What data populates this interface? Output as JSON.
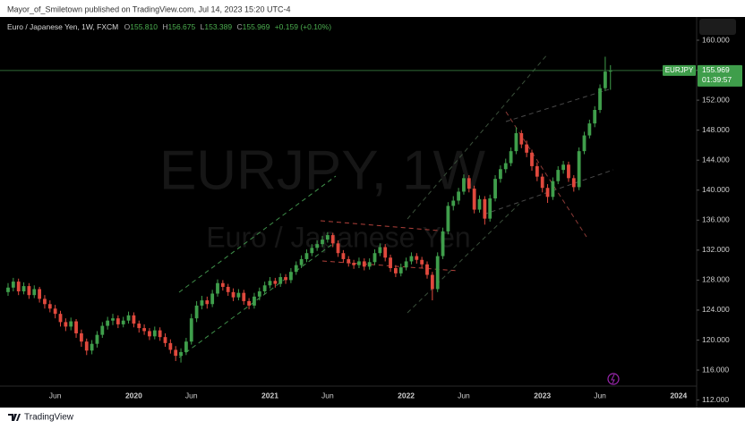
{
  "header": {
    "text": "Mayor_of_Smiletown published on TradingView.com, Jul 14, 2023 15:20 UTC-4"
  },
  "footer": {
    "brand": "TradingView"
  },
  "chart_data": {
    "type": "candlestick",
    "title": "Euro / Japanese Yen, 1W, FXCM",
    "ohlc_legend": [
      {
        "key": "O",
        "value": "155.810"
      },
      {
        "key": "H",
        "value": "156.675"
      },
      {
        "key": "L",
        "value": "153.389"
      },
      {
        "key": "C",
        "value": "155.969"
      }
    ],
    "change": "+0.159 (+0.10%)",
    "watermark": [
      "EURJPY, 1W",
      "Euro / Japanese Yen"
    ],
    "symbol": "EURJPY",
    "countdown": "01:39:57",
    "up_color": "#3f9e4b",
    "down_color": "#e0493d",
    "grid": false,
    "ylim": [
      111,
      163.1
    ],
    "yticks": [
      {
        "value": 112,
        "label": "112.000"
      },
      {
        "value": 116,
        "label": "116.000"
      },
      {
        "value": 120,
        "label": "120.000"
      },
      {
        "value": 124,
        "label": "124.000"
      },
      {
        "value": 128,
        "label": "128.000"
      },
      {
        "value": 132,
        "label": "132.000"
      },
      {
        "value": 136,
        "label": "136.000"
      },
      {
        "value": 140,
        "label": "140.000"
      },
      {
        "value": 144,
        "label": "144.000"
      },
      {
        "value": 148,
        "label": "148.000"
      },
      {
        "value": 152,
        "label": "152.000"
      },
      {
        "value": 156,
        "label": "156.000"
      },
      {
        "value": 160,
        "label": "160.000"
      }
    ],
    "categories": [
      null,
      null,
      null,
      null,
      null,
      null,
      null,
      null,
      null,
      "Jun",
      null,
      null,
      null,
      null,
      null,
      null,
      null,
      null,
      null,
      null,
      null,
      null,
      null,
      null,
      "2020",
      null,
      null,
      null,
      null,
      null,
      null,
      null,
      null,
      null,
      null,
      "Jun",
      null,
      null,
      null,
      null,
      null,
      null,
      null,
      null,
      null,
      null,
      null,
      null,
      null,
      null,
      "2021",
      null,
      null,
      null,
      null,
      null,
      null,
      null,
      null,
      null,
      null,
      "Jun",
      null,
      null,
      null,
      null,
      null,
      null,
      null,
      null,
      null,
      null,
      null,
      null,
      null,
      null,
      "2022",
      null,
      null,
      null,
      null,
      null,
      null,
      null,
      null,
      null,
      null,
      "Jun",
      null,
      null,
      null,
      null,
      null,
      null,
      null,
      null,
      null,
      null,
      null,
      null,
      null,
      null,
      "2023",
      null,
      null,
      null,
      null,
      null,
      null,
      null,
      null,
      null,
      null,
      "Jun",
      null,
      null,
      null,
      null,
      null,
      null,
      null,
      null,
      null,
      null,
      null,
      null,
      null,
      null,
      "2024",
      null,
      null,
      null
    ],
    "open": [
      126.4,
      127.0,
      127.8,
      126.5,
      127.2,
      126.0,
      126.8,
      125.5,
      124.8,
      124.2,
      123.5,
      122.4,
      121.8,
      122.5,
      120.9,
      119.8,
      118.6,
      119.5,
      120.7,
      121.9,
      122.6,
      122.9,
      122.1,
      122.6,
      123.3,
      122.2,
      121.6,
      121.2,
      120.5,
      121.3,
      120.4,
      119.6,
      118.7,
      117.9,
      118.4,
      119.8,
      122.9,
      124.6,
      125.3,
      124.8,
      126.2,
      127.6,
      127.1,
      126.4,
      125.7,
      126.3,
      125.2,
      124.6,
      125.8,
      126.5,
      127.3,
      127.9,
      127.5,
      128.4,
      128.0,
      129.1,
      130.0,
      130.8,
      131.6,
      132.3,
      132.8,
      133.4,
      134.0,
      132.9,
      131.6,
      130.8,
      130.3,
      130.0,
      130.5,
      129.8,
      130.4,
      131.6,
      132.4,
      131.0,
      129.6,
      128.9,
      129.7,
      130.5,
      131.2,
      130.7,
      130.1,
      128.7,
      126.8,
      131.2,
      134.5,
      137.9,
      138.6,
      139.8,
      141.6,
      140.2,
      137.4,
      138.8,
      136.2,
      138.9,
      141.5,
      142.8,
      143.6,
      145.2,
      147.6,
      146.1,
      145.0,
      143.2,
      141.8,
      140.3,
      139.1,
      141.2,
      142.7,
      143.4,
      141.6,
      140.4,
      145.2,
      147.3,
      148.9,
      150.7,
      153.6,
      155.81,
      null,
      null,
      null,
      null,
      null,
      null,
      null,
      null,
      null,
      null,
      null,
      null,
      null,
      null,
      null,
      null
    ],
    "high": [
      127.6,
      128.3,
      128.2,
      127.7,
      127.6,
      127.3,
      127.1,
      126.0,
      125.3,
      124.7,
      123.9,
      122.9,
      123.0,
      122.8,
      121.4,
      120.2,
      120.0,
      121.2,
      122.4,
      123.1,
      123.5,
      123.3,
      123.1,
      123.8,
      123.7,
      122.6,
      122.1,
      121.6,
      121.8,
      121.7,
      120.9,
      120.1,
      119.2,
      118.9,
      120.3,
      123.5,
      125.2,
      125.9,
      125.8,
      126.7,
      128.1,
      128.0,
      127.5,
      126.9,
      126.8,
      126.7,
      125.6,
      126.3,
      127.0,
      127.8,
      128.4,
      128.3,
      128.9,
      128.8,
      129.6,
      130.5,
      131.3,
      132.1,
      132.8,
      133.3,
      133.9,
      134.4,
      134.3,
      133.3,
      132.0,
      131.2,
      130.7,
      131.0,
      130.9,
      130.9,
      132.1,
      132.9,
      132.8,
      131.4,
      130.0,
      130.2,
      131.0,
      131.7,
      131.6,
      131.1,
      130.5,
      129.1,
      131.7,
      135.0,
      138.4,
      139.2,
      140.3,
      142.1,
      142.0,
      140.6,
      139.3,
      139.2,
      139.4,
      142.0,
      143.3,
      144.2,
      145.7,
      148.4,
      148.0,
      146.6,
      145.4,
      143.7,
      142.2,
      140.8,
      141.7,
      143.2,
      143.9,
      143.8,
      142.0,
      145.7,
      147.8,
      149.4,
      151.2,
      154.1,
      157.8,
      156.675,
      null,
      null,
      null,
      null,
      null,
      null,
      null,
      null,
      null,
      null,
      null,
      null,
      null,
      null,
      null,
      null
    ],
    "low": [
      125.9,
      126.5,
      126.0,
      126.1,
      125.5,
      125.6,
      125.0,
      124.2,
      123.7,
      122.9,
      121.8,
      121.2,
      121.3,
      120.3,
      119.1,
      118.0,
      118.1,
      119.0,
      120.3,
      121.4,
      122.0,
      121.6,
      121.7,
      122.2,
      121.7,
      121.0,
      120.7,
      120.0,
      120.1,
      119.9,
      119.1,
      118.2,
      117.2,
      117.0,
      118.0,
      119.4,
      122.4,
      124.1,
      124.2,
      124.4,
      125.8,
      126.6,
      125.9,
      125.2,
      125.3,
      124.7,
      124.1,
      124.2,
      125.3,
      126.1,
      126.9,
      127.0,
      127.1,
      127.5,
      127.6,
      128.7,
      129.6,
      130.4,
      131.2,
      131.9,
      132.4,
      133.0,
      132.4,
      131.1,
      130.3,
      129.8,
      129.5,
      129.6,
      129.3,
      129.4,
      130.0,
      131.2,
      130.5,
      129.1,
      128.4,
      128.5,
      129.3,
      130.1,
      130.2,
      129.6,
      128.2,
      125.3,
      126.4,
      130.8,
      134.1,
      137.3,
      138.1,
      139.4,
      139.7,
      136.9,
      137.0,
      135.4,
      135.8,
      138.5,
      141.0,
      142.3,
      143.2,
      144.8,
      145.6,
      144.4,
      142.6,
      141.2,
      139.7,
      138.3,
      138.7,
      140.8,
      142.2,
      141.1,
      139.8,
      140.0,
      144.8,
      146.9,
      148.4,
      150.3,
      153.2,
      153.389,
      null,
      null,
      null,
      null,
      null,
      null,
      null,
      null,
      null,
      null,
      null,
      null,
      null,
      null,
      null,
      null
    ],
    "close": [
      127.0,
      127.8,
      126.5,
      127.2,
      126.0,
      126.8,
      125.5,
      124.8,
      124.2,
      123.5,
      122.4,
      121.8,
      122.5,
      120.9,
      119.8,
      118.6,
      119.5,
      120.7,
      121.9,
      122.6,
      122.9,
      122.1,
      122.6,
      123.3,
      122.2,
      121.6,
      121.2,
      120.5,
      121.3,
      120.4,
      119.6,
      118.7,
      117.9,
      118.4,
      119.8,
      122.9,
      124.6,
      125.3,
      124.8,
      126.2,
      127.6,
      127.1,
      126.4,
      125.7,
      126.3,
      125.2,
      124.6,
      125.8,
      126.5,
      127.3,
      127.9,
      127.5,
      128.4,
      128.0,
      129.1,
      130.0,
      130.8,
      131.6,
      132.3,
      132.8,
      133.4,
      134.0,
      132.9,
      131.6,
      130.8,
      130.3,
      130.0,
      130.5,
      129.8,
      130.4,
      131.6,
      132.4,
      131.0,
      129.6,
      128.9,
      129.7,
      130.5,
      131.2,
      130.7,
      130.1,
      128.7,
      126.8,
      131.2,
      134.5,
      137.9,
      138.6,
      139.8,
      141.6,
      140.2,
      137.4,
      138.8,
      136.2,
      138.9,
      141.5,
      142.8,
      143.6,
      145.2,
      147.6,
      146.1,
      145.0,
      143.2,
      141.8,
      140.3,
      139.1,
      141.2,
      142.7,
      143.4,
      141.6,
      140.4,
      145.2,
      147.3,
      148.9,
      150.7,
      153.6,
      155.81,
      155.969,
      null,
      null,
      null,
      null,
      null,
      null,
      null,
      null,
      null,
      null,
      null,
      null,
      null,
      null,
      null,
      null
    ]
  }
}
